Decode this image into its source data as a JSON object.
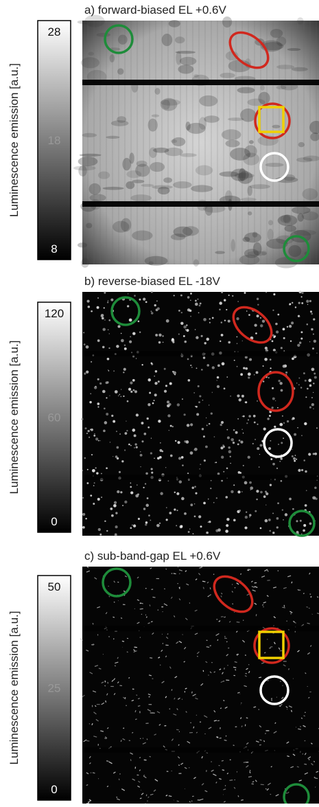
{
  "panels": [
    {
      "title": "a)  forward-biased EL  +0.6V",
      "colorbar_label": "Luminescence emission [a.u.]",
      "colorbar_ticks": [
        28,
        18,
        8
      ]
    },
    {
      "title": "b)  reverse-biased EL   -18V",
      "colorbar_label": "Luminescence emission [a.u.]",
      "colorbar_ticks": [
        120,
        60,
        0
      ]
    },
    {
      "title": "c)  sub-band-gap EL   +0.6V",
      "colorbar_label": "Luminescence emission [a.u.]",
      "colorbar_ticks": [
        50,
        25,
        0
      ]
    }
  ]
}
